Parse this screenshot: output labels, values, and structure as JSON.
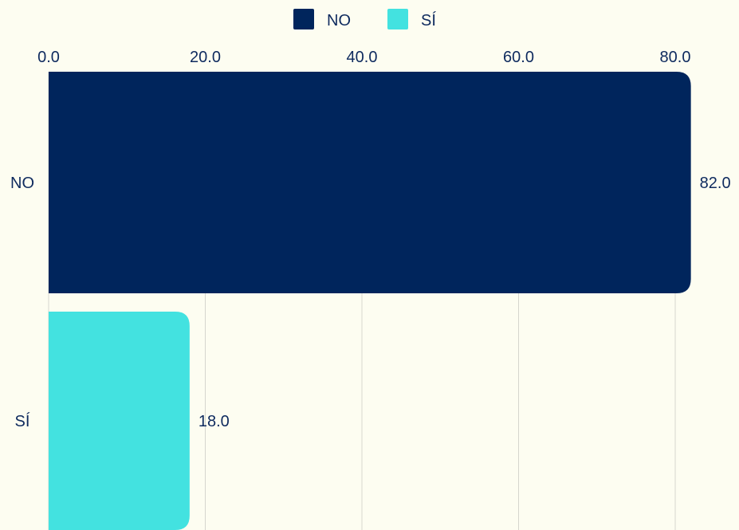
{
  "chart_data": {
    "type": "bar",
    "orientation": "horizontal",
    "categories": [
      "NO",
      "SÍ"
    ],
    "values": [
      82.0,
      18.0
    ],
    "colors": [
      "#00255C",
      "#43E2E0"
    ],
    "xlim": [
      0,
      80
    ],
    "x_ticks": [
      0,
      20,
      40,
      60,
      80
    ],
    "x_tick_labels": [
      "0.0",
      "20.0",
      "40.0",
      "60.0",
      "80.0"
    ],
    "x_axis_position": "top",
    "data_labels": [
      "82.0",
      "18.0"
    ],
    "grid": "vertical",
    "legend": {
      "position": "top-center",
      "entries": [
        {
          "label": "NO",
          "color": "#00255C"
        },
        {
          "label": "SÍ",
          "color": "#43E2E0"
        }
      ]
    },
    "title": "",
    "xlabel": "",
    "ylabel": ""
  },
  "colors": {
    "background": "#FDFDF1",
    "text": "#0E2A5E",
    "grid": "#D6D6CE"
  }
}
